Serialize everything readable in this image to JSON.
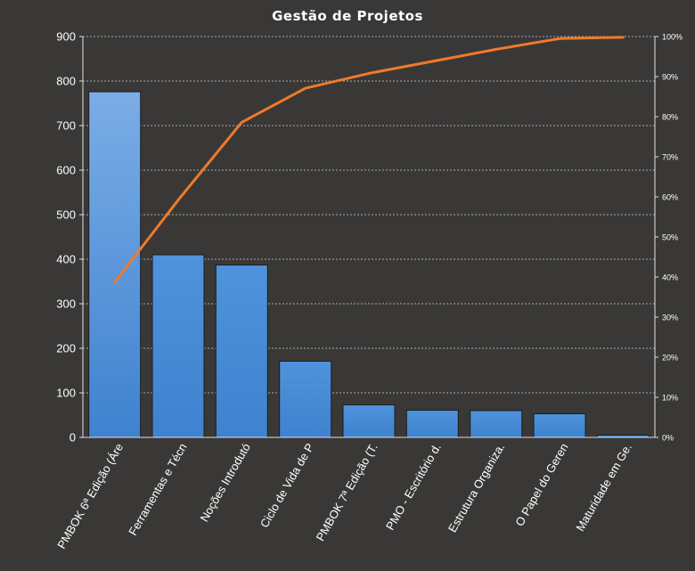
{
  "chart_data": {
    "type": "bar",
    "title": "Gestão de Projetos",
    "xlabel": "",
    "ylabel": "",
    "ylim": [
      0,
      900
    ],
    "yticks": [
      "0",
      "100",
      "200",
      "300",
      "400",
      "500",
      "600",
      "700",
      "800",
      "900"
    ],
    "y2lim": [
      0,
      100
    ],
    "y2ticks": [
      "0%",
      "10%",
      "20%",
      "30%",
      "40%",
      "50%",
      "60%",
      "70%",
      "80%",
      "90%",
      "100%"
    ],
    "categories": [
      "PMBOK 6ª Edição (Áre",
      "Ferramentas e Técn",
      "Noções Introdutó",
      "Ciclo de Vida de P",
      "PMBOK 7ª Edição (T.",
      "PMO - Escritório d.",
      "Estrutura Organiza.",
      "O Papel do Geren",
      "Maturidade em Ge."
    ],
    "series": [
      {
        "type": "bar",
        "values": [
          776,
          410,
          387,
          171,
          73,
          61,
          60,
          53,
          5
        ],
        "color": "#4f8fd6"
      },
      {
        "type": "line",
        "axis": "secondary",
        "values": [
          38.7,
          59.2,
          78.6,
          87.1,
          90.8,
          93.8,
          96.8,
          99.5,
          99.8
        ],
        "color": "#ee7a2c"
      }
    ],
    "grid": true,
    "legend": "none"
  }
}
